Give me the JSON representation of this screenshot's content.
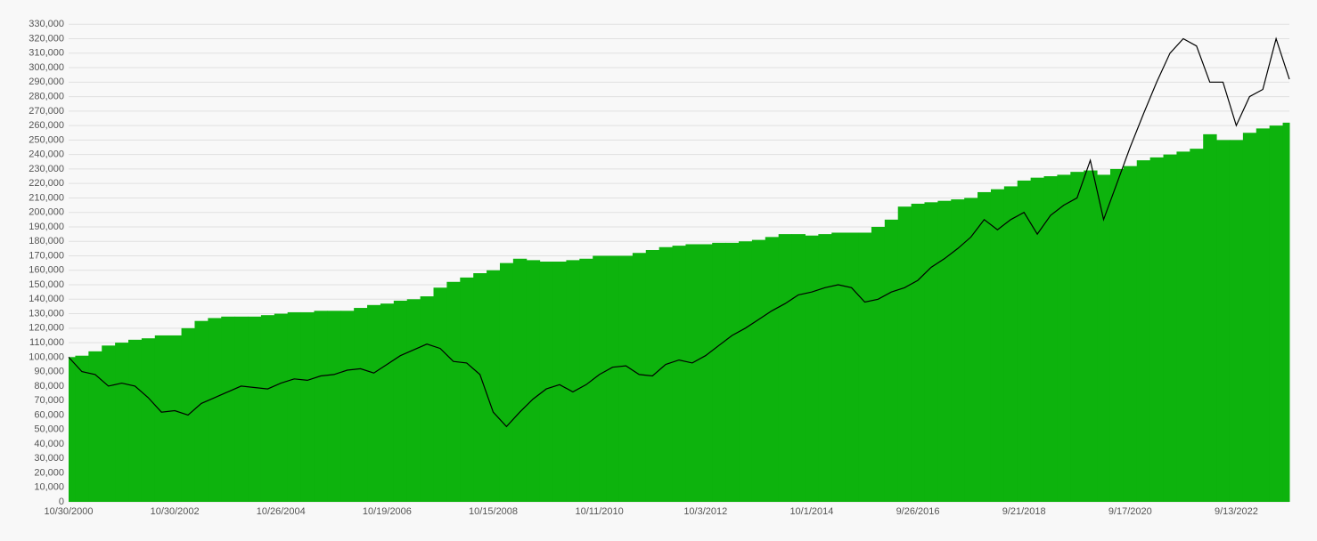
{
  "chart_data": {
    "type": "combo",
    "categories": [
      "10/30/2000",
      null,
      null,
      null,
      null,
      null,
      null,
      null,
      "10/30/2002",
      null,
      null,
      null,
      null,
      null,
      null,
      null,
      "10/26/2004",
      null,
      null,
      null,
      null,
      null,
      null,
      null,
      "10/19/2006",
      null,
      null,
      null,
      null,
      null,
      null,
      null,
      "10/15/2008",
      null,
      null,
      null,
      null,
      null,
      null,
      null,
      "10/11/2010",
      null,
      null,
      null,
      null,
      null,
      null,
      null,
      "10/3/2012",
      null,
      null,
      null,
      null,
      null,
      null,
      null,
      "10/1/2014",
      null,
      null,
      null,
      null,
      null,
      null,
      null,
      "9/26/2016",
      null,
      null,
      null,
      null,
      null,
      null,
      null,
      "9/21/2018",
      null,
      null,
      null,
      null,
      null,
      null,
      null,
      "9/17/2020",
      null,
      null,
      null,
      null,
      null,
      null,
      null,
      "9/13/2022",
      null,
      null,
      null,
      null
    ],
    "series": [
      {
        "type": "bar",
        "color": "#0db30d",
        "values": [
          100000,
          101000,
          104000,
          108000,
          110000,
          112000,
          113000,
          115000,
          115000,
          120000,
          125000,
          127000,
          128000,
          128000,
          128000,
          129000,
          130000,
          131000,
          131000,
          132000,
          132000,
          132000,
          134000,
          136000,
          137000,
          139000,
          140000,
          142000,
          148000,
          152000,
          155000,
          158000,
          160000,
          165000,
          168000,
          167000,
          166000,
          166000,
          167000,
          168000,
          170000,
          170000,
          170000,
          172000,
          174000,
          176000,
          177000,
          178000,
          178000,
          179000,
          179000,
          180000,
          181000,
          183000,
          185000,
          185000,
          184000,
          185000,
          186000,
          186000,
          186000,
          190000,
          195000,
          204000,
          206000,
          207000,
          208000,
          209000,
          210000,
          214000,
          216000,
          218000,
          222000,
          224000,
          225000,
          226000,
          228000,
          229000,
          226000,
          230000,
          232000,
          236000,
          238000,
          240000,
          242000,
          244000,
          254000,
          250000,
          250000,
          255000,
          258000,
          260000,
          262000
        ]
      },
      {
        "type": "line",
        "color": "#000000",
        "values": [
          100000,
          90000,
          88000,
          80000,
          82000,
          80000,
          72000,
          62000,
          63000,
          60000,
          68000,
          72000,
          76000,
          80000,
          79000,
          78000,
          82000,
          85000,
          84000,
          87000,
          88000,
          91000,
          92000,
          89000,
          95000,
          101000,
          105000,
          109000,
          106000,
          97000,
          96000,
          88000,
          62000,
          52000,
          62000,
          71000,
          78000,
          81000,
          76000,
          81000,
          88000,
          93000,
          94000,
          88000,
          87000,
          95000,
          98000,
          96000,
          101000,
          108000,
          115000,
          120000,
          126000,
          132000,
          137000,
          143000,
          145000,
          148000,
          150000,
          148000,
          138000,
          140000,
          145000,
          148000,
          153000,
          162000,
          168000,
          175000,
          183000,
          195000,
          188000,
          195000,
          200000,
          185000,
          198000,
          205000,
          210000,
          236000,
          195000,
          220000,
          245000,
          268000,
          290000,
          310000,
          320000,
          315000,
          290000,
          290000,
          260000,
          280000,
          285000,
          320000,
          292000
        ]
      }
    ],
    "ylim": [
      0,
      340000
    ],
    "yticks": [
      0,
      {
        "value": 10000,
        "label": "10,000"
      },
      {
        "value": 20000,
        "label": "20,000"
      },
      {
        "value": 30000,
        "label": "30,000"
      },
      {
        "value": 40000,
        "label": "40,000"
      },
      {
        "value": 50000,
        "label": "50,000"
      },
      {
        "value": 60000,
        "label": "60,000"
      },
      {
        "value": 70000,
        "label": "70,000"
      },
      {
        "value": 80000,
        "label": "80,000"
      },
      {
        "value": 90000,
        "label": "90,000"
      },
      {
        "value": 100000,
        "label": "100,000"
      },
      {
        "value": 110000,
        "label": "110,000"
      },
      {
        "value": 120000,
        "label": "120,000"
      },
      {
        "value": 130000,
        "label": "130,000"
      },
      {
        "value": 140000,
        "label": "140,000"
      },
      {
        "value": 150000,
        "label": "150,000"
      },
      {
        "value": 160000,
        "label": "160,000"
      },
      {
        "value": 170000,
        "label": "170,000"
      },
      {
        "value": 180000,
        "label": "180,000"
      },
      {
        "value": 190000,
        "label": "190,000"
      },
      {
        "value": 200000,
        "label": "200,000"
      },
      {
        "value": 210000,
        "label": "210,000"
      },
      {
        "value": 220000,
        "label": "220,000"
      },
      {
        "value": 230000,
        "label": "230,000"
      },
      {
        "value": 240000,
        "label": "240,000"
      },
      {
        "value": 250000,
        "label": "250,000"
      },
      {
        "value": 260000,
        "label": "260,000"
      },
      {
        "value": 270000,
        "label": "270,000"
      },
      {
        "value": 280000,
        "label": "280,000"
      },
      {
        "value": 290000,
        "label": "290,000"
      },
      {
        "value": 300000,
        "label": "300,000"
      },
      {
        "value": 310000,
        "label": "310,000"
      },
      {
        "value": 320000,
        "label": "320,000"
      },
      {
        "value": 330000,
        "label": "330,000"
      }
    ],
    "grid": true
  }
}
